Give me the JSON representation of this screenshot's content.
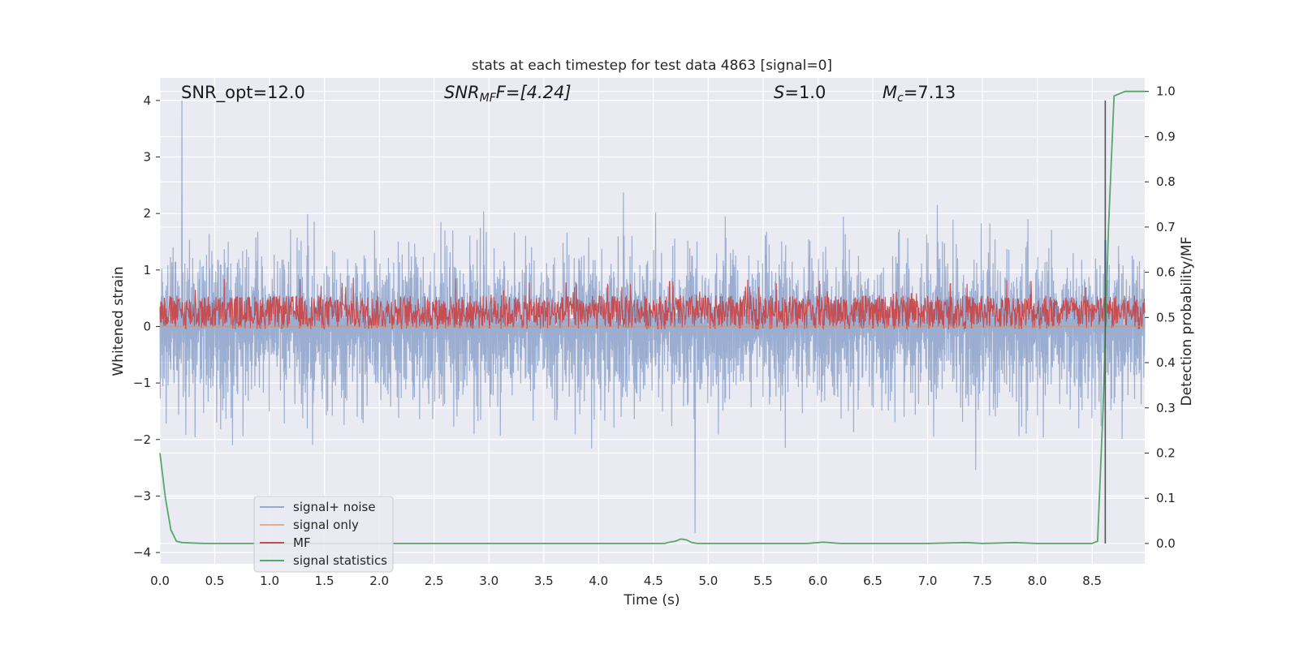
{
  "chart_data": {
    "type": "line",
    "title": "stats at each timestep for test data 4863 [signal=0]",
    "xlabel": "Time (s)",
    "ylabel": "Whitened strain",
    "ylabel_right": "Detection probability/MF",
    "xlim": [
      0.0,
      8.98
    ],
    "ylim": [
      -4.2,
      4.4
    ],
    "ylim_right": [
      -0.045,
      1.03
    ],
    "x_ticks": [
      "0.0",
      "0.5",
      "1.0",
      "1.5",
      "2.0",
      "2.5",
      "3.0",
      "3.5",
      "4.0",
      "4.5",
      "5.0",
      "5.5",
      "6.0",
      "6.5",
      "7.0",
      "7.5",
      "8.0",
      "8.5"
    ],
    "y_ticks": [
      "4",
      "3",
      "2",
      "1",
      "0",
      "−1",
      "−2",
      "−3",
      "−4"
    ],
    "y_ticks_right": [
      "1.0",
      "0.9",
      "0.8",
      "0.7",
      "0.6",
      "0.5",
      "0.4",
      "0.3",
      "0.2",
      "0.1",
      "0.0"
    ],
    "grid": true,
    "legend_position": "lower-left",
    "annotations": {
      "snr_opt": "SNR_opt=12.0",
      "snr_mf_main": "SNR",
      "snr_mf_sub": "MF",
      "snr_mf_value": "F=[4.24]",
      "s_main": "S",
      "s_value": "=1.0",
      "mc_main": "M",
      "mc_sub": "c",
      "mc_value": "=7.13"
    },
    "series": [
      {
        "name": "signal+ noise",
        "color": "#4c72b0",
        "axis": "left",
        "approx_range": [
          -3.7,
          4.0
        ],
        "peaks": [
          {
            "x": 0.2,
            "y": 4.0
          },
          {
            "x": 4.88,
            "y": -3.65
          }
        ]
      },
      {
        "name": "signal only",
        "color": "#dd8452",
        "axis": "left",
        "values_constant": 0.0
      },
      {
        "name": "MF",
        "color": "#c44e52",
        "axis": "right",
        "approx_range": [
          0.45,
          0.6
        ]
      },
      {
        "name": "signal statistics",
        "color": "#55a868",
        "axis": "right",
        "x": [
          0.0,
          0.05,
          0.1,
          0.15,
          0.2,
          0.4,
          1.0,
          2.0,
          3.0,
          4.0,
          4.5,
          4.6,
          4.65,
          4.7,
          4.75,
          4.8,
          4.85,
          4.9,
          5.0,
          5.5,
          5.9,
          6.05,
          6.2,
          6.5,
          7.0,
          7.35,
          7.5,
          7.8,
          7.9,
          8.0,
          8.5,
          8.55,
          8.6,
          8.65,
          8.7,
          8.75,
          8.8,
          8.9,
          8.98
        ],
        "values": [
          0.2,
          0.1,
          0.03,
          0.005,
          0.002,
          0.0,
          0.0,
          0.0,
          0.0,
          0.0,
          0.0,
          0.0,
          0.003,
          0.005,
          0.01,
          0.008,
          0.002,
          0.0,
          0.0,
          0.0,
          0.0,
          0.003,
          0.0,
          0.0,
          0.0,
          0.002,
          0.0,
          0.002,
          0.001,
          0.0,
          0.0,
          0.005,
          0.3,
          0.7,
          0.99,
          0.995,
          1.0,
          1.0,
          1.0
        ]
      }
    ],
    "vertical_marker_x": 8.62
  }
}
